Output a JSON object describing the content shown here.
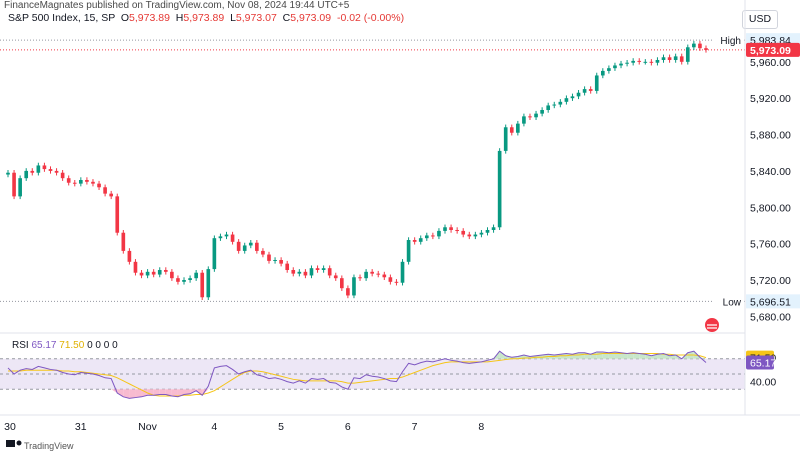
{
  "top_note": "FinanceMagnates published on TradingView.com, Nov 08, 2024 19:44 UTC+5",
  "legend": {
    "symbol": "S&P 500 Index, 15, SP",
    "o_key": "O",
    "o_val": "5,973.89",
    "h_key": "H",
    "h_val": "5,973.89",
    "l_key": "L",
    "l_val": "5,973.07",
    "c_key": "C",
    "c_val": "5,973.09",
    "change": "-0.02 (-0.00%)"
  },
  "currency_button": "USD",
  "rsi_legend": {
    "name": "RSI",
    "rsi_value": "65.17",
    "ma_value": "71.50",
    "zeros": [
      "0",
      "0",
      "0",
      "0"
    ]
  },
  "footer_note": "TradingView",
  "colors": {
    "up": "#089981",
    "down": "#f23645",
    "rsi": "#7e57c2",
    "rsi_ma": "#f5c518",
    "rsi_band": "#ede7f6",
    "last_price": "#f23645",
    "high_low_tag": "#e3f2fd"
  },
  "icons": {
    "logo": "tradingview-logo-icon",
    "clock": "session-clock-icon"
  },
  "chart_data": [
    {
      "type": "candlestick",
      "title": "S&P 500 Index, 15, SP",
      "y_range": [
        5665,
        5995
      ],
      "y_ticks": [
        5680,
        5720,
        5760,
        5800,
        5840,
        5880,
        5920,
        5960
      ],
      "y_tick_labels": [
        "5,680.00",
        "5,720.00",
        "5,760.00",
        "5,800.00",
        "5,840.00",
        "5,880.00",
        "5,920.00",
        "5,960.00"
      ],
      "x_tick_labels": [
        "30",
        "31",
        "Nov",
        "4",
        "5",
        "6",
        "7",
        "8"
      ],
      "x_tick_index": [
        0,
        11,
        22,
        33,
        44,
        55,
        66,
        77
      ],
      "markers": {
        "high": {
          "label": "High",
          "value": 5983.84,
          "value_label": "5,983.84"
        },
        "low": {
          "label": "Low",
          "value": 5696.51,
          "value_label": "5,696.51"
        },
        "last": {
          "value": 5973.09,
          "value_label": "5,973.09"
        }
      },
      "closes": [
        5838,
        5812,
        5832,
        5840,
        5838,
        5846,
        5842,
        5840,
        5838,
        5832,
        5827,
        5826,
        5830,
        5828,
        5826,
        5822,
        5815,
        5812,
        5772,
        5752,
        5740,
        5728,
        5725,
        5729,
        5726,
        5731,
        5729,
        5722,
        5718,
        5720,
        5722,
        5728,
        5701,
        5732,
        5766,
        5768,
        5770,
        5762,
        5752,
        5758,
        5761,
        5752,
        5748,
        5741,
        5742,
        5738,
        5731,
        5727,
        5729,
        5725,
        5733,
        5731,
        5733,
        5725,
        5722,
        5711,
        5703,
        5723,
        5722,
        5729,
        5727,
        5726,
        5723,
        5718,
        5717,
        5740,
        5764,
        5762,
        5766,
        5769,
        5768,
        5774,
        5778,
        5775,
        5774,
        5770,
        5768,
        5770,
        5772,
        5775,
        5778,
        5862,
        5888,
        5882,
        5892,
        5900,
        5899,
        5903,
        5907,
        5912,
        5913,
        5916,
        5920,
        5922,
        5926,
        5930,
        5928,
        5945,
        5950,
        5953,
        5956,
        5958,
        5959,
        5961,
        5960,
        5960,
        5959,
        5962,
        5965,
        5962,
        5966,
        5960,
        5976,
        5980,
        5975,
        5973.09
      ]
    },
    {
      "type": "line",
      "title": "RSI",
      "y_range": [
        0,
        100
      ],
      "y_tick_labels": [
        "40.00"
      ],
      "band": [
        30,
        70
      ],
      "series": [
        {
          "name": "RSI",
          "last": 65.17
        },
        {
          "name": "RSI-based MA",
          "last": 71.5
        }
      ],
      "rsi_values": [
        58,
        50,
        55,
        57,
        56,
        60,
        58,
        56,
        55,
        52,
        50,
        49,
        52,
        51,
        50,
        48,
        45,
        44,
        25,
        20,
        18,
        19,
        20,
        22,
        22,
        23,
        23,
        21,
        20,
        23,
        24,
        28,
        22,
        34,
        58,
        60,
        61,
        56,
        50,
        53,
        55,
        49,
        47,
        44,
        45,
        43,
        40,
        38,
        41,
        38,
        44,
        43,
        44,
        39,
        38,
        33,
        30,
        45,
        44,
        49,
        47,
        46,
        44,
        41,
        40,
        53,
        64,
        62,
        65,
        67,
        66,
        68,
        70,
        68,
        67,
        65,
        64,
        65,
        66,
        68,
        70,
        80,
        74,
        72,
        73,
        75,
        73,
        74,
        75,
        76,
        75,
        76,
        77,
        76,
        78,
        78,
        76,
        79,
        79,
        78,
        79,
        78,
        77,
        78,
        77,
        76,
        74,
        76,
        77,
        74,
        75,
        70,
        78,
        80,
        72,
        65.17
      ],
      "ma_values": [
        54,
        54,
        54,
        55,
        55,
        55,
        55,
        55,
        55,
        54,
        54,
        53,
        53,
        52,
        51,
        50,
        49,
        48,
        45,
        41,
        37,
        33,
        29,
        25,
        22,
        21,
        21,
        21,
        21,
        22,
        22,
        23,
        23,
        25,
        28,
        33,
        38,
        43,
        48,
        52,
        54,
        54,
        53,
        51,
        49,
        47,
        45,
        43,
        42,
        41,
        41,
        41,
        41,
        41,
        41,
        40,
        38,
        38,
        39,
        40,
        41,
        42,
        43,
        44,
        44,
        46,
        49,
        52,
        55,
        58,
        61,
        63,
        65,
        66,
        66,
        66,
        66,
        66,
        66,
        66,
        67,
        68,
        69,
        70,
        70,
        71,
        71,
        72,
        72,
        73,
        73,
        74,
        74,
        75,
        75,
        76,
        76,
        76,
        77,
        77,
        77,
        77,
        77,
        77,
        77,
        77,
        77,
        77,
        76,
        76,
        75,
        75,
        75,
        75,
        74,
        71.5
      ]
    }
  ]
}
